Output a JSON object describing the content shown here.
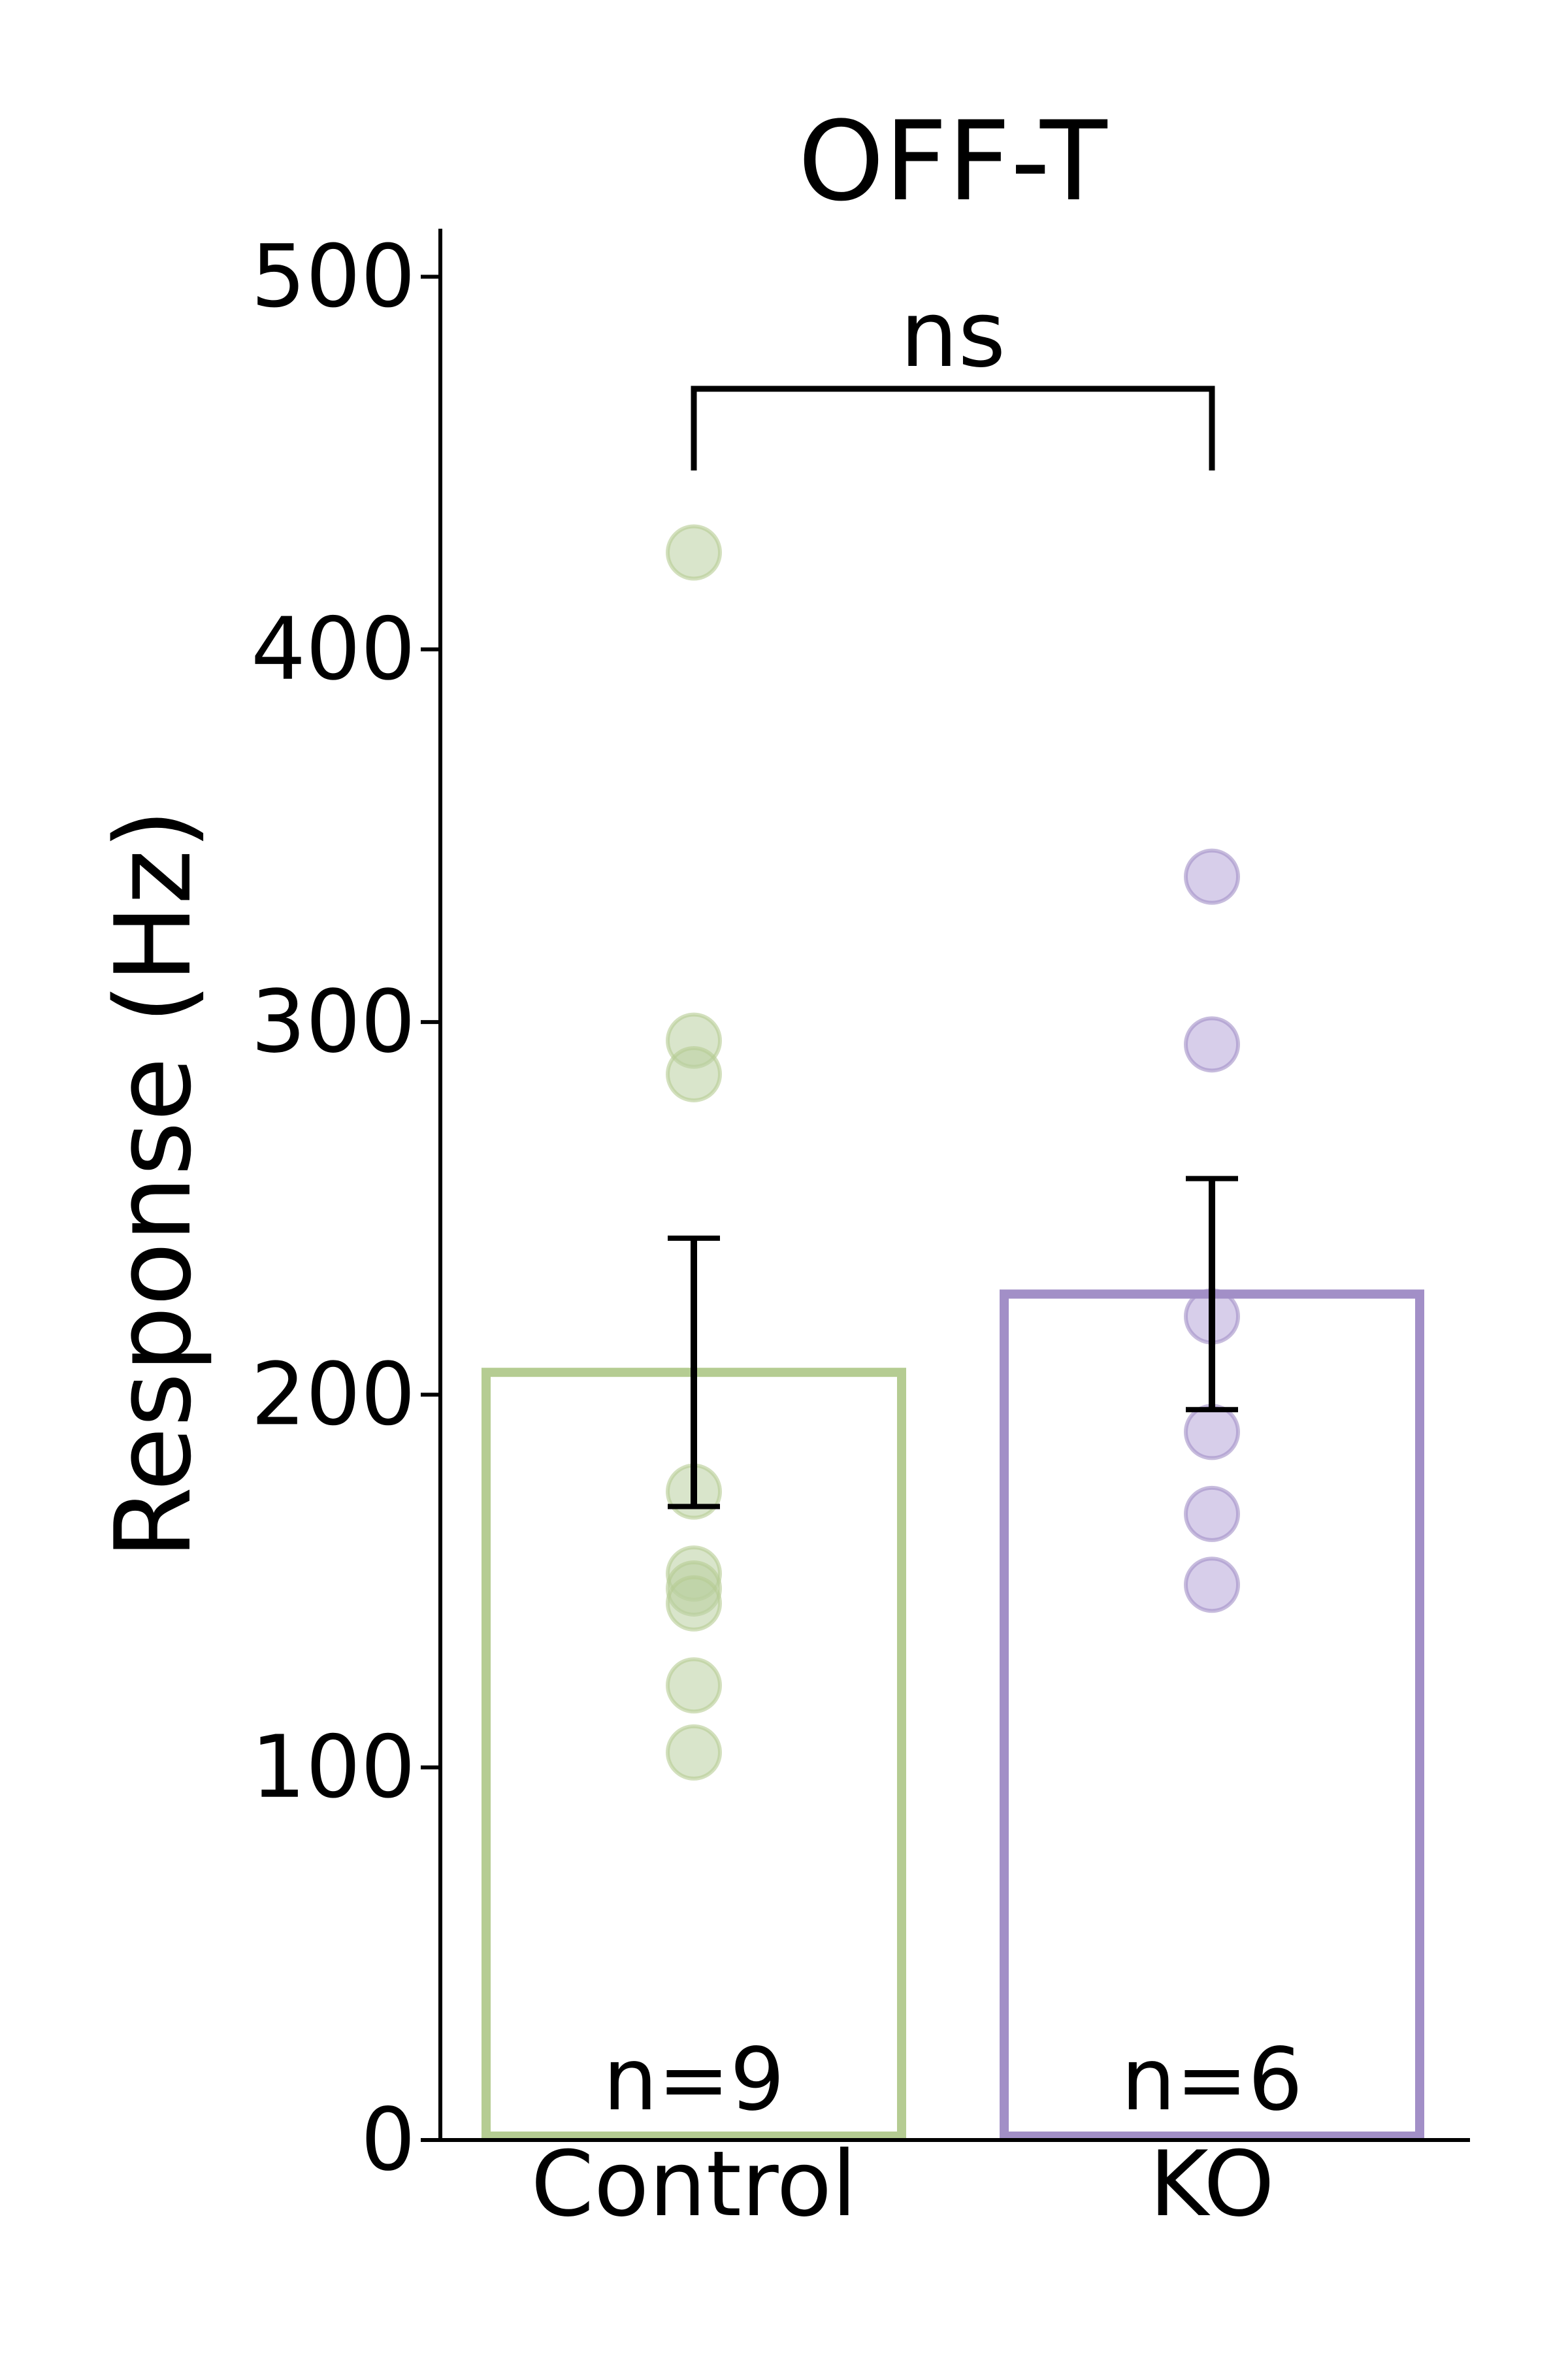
{
  "chart_data": {
    "type": "bar",
    "title": "OFF-T",
    "xlabel": "",
    "ylabel": "Response (Hz)",
    "ylim": [
      0,
      512
    ],
    "yticks": [
      0,
      100,
      200,
      300,
      400,
      500
    ],
    "categories": [
      "Control",
      "KO"
    ],
    "series": [
      {
        "values": [
          206,
          227
        ],
        "error": [
          36,
          31
        ],
        "colors": [
          "#b5cc92",
          "#a28fc7"
        ],
        "n_labels": [
          "n=9",
          "n=6"
        ],
        "points": [
          [
            426,
            295,
            286,
            174,
            152,
            148,
            144,
            122,
            104
          ],
          [
            339,
            294,
            221,
            190,
            168,
            149
          ]
        ]
      }
    ],
    "significance": {
      "label": "ns",
      "between": [
        "Control",
        "KO"
      ]
    },
    "grid": false,
    "legend": "none",
    "point_colors": [
      "#b9d0a0",
      "#b6a6d9"
    ]
  }
}
